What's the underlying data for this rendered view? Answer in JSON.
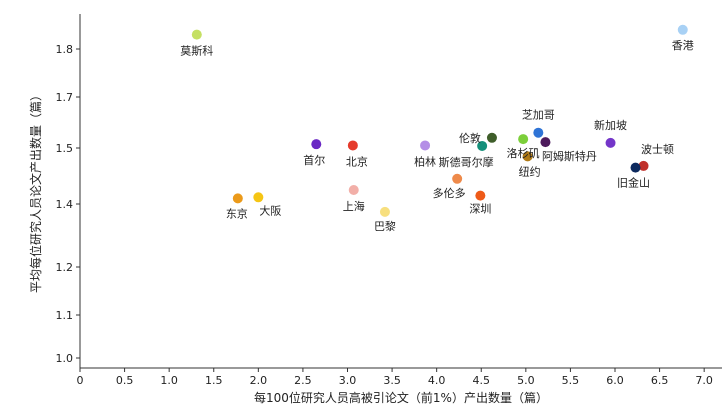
{
  "chart_data": {
    "type": "scatter",
    "xlabel": "每100位研究人员高被引论文（前1%）产出数量（篇）",
    "ylabel": "平均每位研究人员论文产出数量（篇）",
    "x_ticks": [
      "0",
      "0.5",
      "1.0",
      "1.5",
      "2.0",
      "2.5",
      "3.0",
      "3.5",
      "4.0",
      "4.5",
      "5.0",
      "5.5",
      "6.0",
      "6.5",
      "7.0"
    ],
    "y_ticks": [
      "1.0",
      "1.1",
      "1.2",
      "1.4",
      "1.5",
      "1.7",
      "1.8"
    ],
    "y_tick_values": [
      1.0,
      1.1,
      1.2,
      1.4,
      1.5,
      1.7,
      1.8
    ],
    "xlim": [
      0,
      7.2
    ],
    "points": [
      {
        "label": "莫斯科",
        "x": 1.31,
        "y": 1.83,
        "color": "#c5e063"
      },
      {
        "label": "香港",
        "x": 6.76,
        "y": 1.84,
        "color": "#a8d1f5"
      },
      {
        "label": "芝加哥",
        "x": 5.14,
        "y": 1.56,
        "color": "#2f74d6"
      },
      {
        "label": "伦敦",
        "x": 4.62,
        "y": 1.54,
        "color": "#3f5e2a"
      },
      {
        "label": "洛杉矶",
        "x": 4.97,
        "y": 1.535,
        "color": "#7ccf3a"
      },
      {
        "label": "新加坡",
        "x": 5.95,
        "y": 1.52,
        "color": "#7436c9"
      },
      {
        "label": "阿姆斯特丹",
        "x": 5.22,
        "y": 1.523,
        "color": "#4d1a5c"
      },
      {
        "label": "斯德哥尔摩",
        "x": 4.51,
        "y": 1.508,
        "color": "#14907a"
      },
      {
        "label": "首尔",
        "x": 2.65,
        "y": 1.515,
        "color": "#6a28c4"
      },
      {
        "label": "北京",
        "x": 3.06,
        "y": 1.51,
        "color": "#e53b2c"
      },
      {
        "label": "柏林",
        "x": 3.87,
        "y": 1.51,
        "color": "#b48ee6"
      },
      {
        "label": "纽约",
        "x": 5.02,
        "y": 1.485,
        "color": "#b07a16"
      },
      {
        "label": "波士顿",
        "x": 6.32,
        "y": 1.468,
        "color": "#c0302a"
      },
      {
        "label": "旧金山",
        "x": 6.23,
        "y": 1.465,
        "color": "#0d2a5e"
      },
      {
        "label": "多伦多",
        "x": 4.23,
        "y": 1.445,
        "color": "#ee8a4a"
      },
      {
        "label": "深圳",
        "x": 4.49,
        "y": 1.415,
        "color": "#ee5a18"
      },
      {
        "label": "上海",
        "x": 3.07,
        "y": 1.425,
        "color": "#f2afa8"
      },
      {
        "label": "东京",
        "x": 1.77,
        "y": 1.41,
        "color": "#eb9a1a"
      },
      {
        "label": "大阪",
        "x": 2.0,
        "y": 1.412,
        "color": "#f5c514"
      },
      {
        "label": "巴黎",
        "x": 3.42,
        "y": 1.375,
        "color": "#f7df7e"
      }
    ]
  }
}
